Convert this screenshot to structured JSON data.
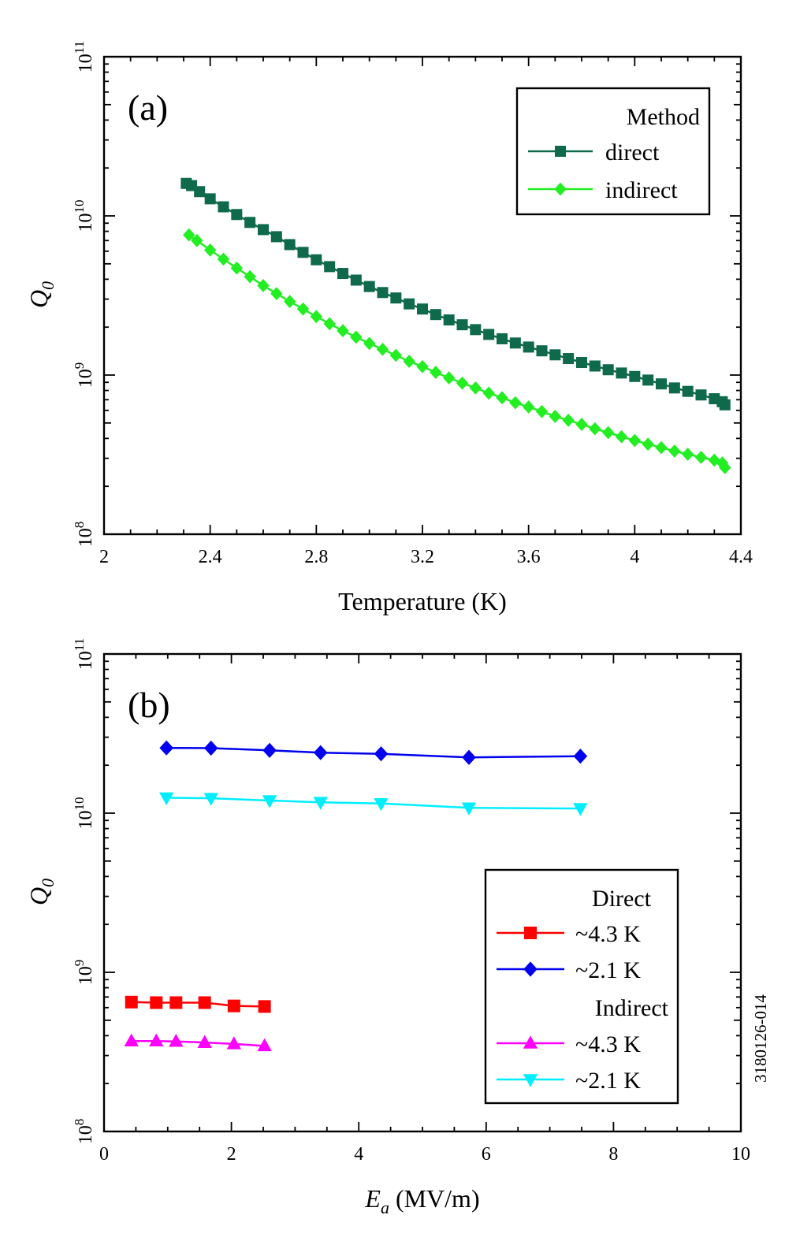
{
  "figure_id": "3180126-014",
  "colors": {
    "direct": "#0e6a4a",
    "indirect": "#22ee22",
    "direct_4_3K": "#ff0000",
    "direct_2_1K": "#0000ee",
    "indirect_4_3K": "#ff00ff",
    "indirect_2_1K": "#00eeff"
  },
  "chart_data": [
    {
      "type": "line",
      "panel_label": "(a)",
      "xlabel": "Temperature (K)",
      "ylabel": "Q",
      "ylabel_sub": "0",
      "xlim": [
        2,
        4.4
      ],
      "ylim": [
        100000000,
        100000000000
      ],
      "yscale": "log",
      "grid": false,
      "x_ticks": [
        "2",
        "2.4",
        "2.8",
        "3.2",
        "3.6",
        "4",
        "4.4"
      ],
      "y_ticks": [
        {
          "base": "10",
          "exp": "8"
        },
        {
          "base": "10",
          "exp": "9"
        },
        {
          "base": "10",
          "exp": "10"
        },
        {
          "base": "10",
          "exp": "11"
        }
      ],
      "legend_title": "Method",
      "legend_position": "top-right",
      "series": [
        {
          "name": "direct",
          "marker": "square",
          "color": "#0e6a4a",
          "x": [
            2.31,
            2.33,
            2.36,
            2.4,
            2.45,
            2.5,
            2.55,
            2.6,
            2.65,
            2.7,
            2.75,
            2.8,
            2.85,
            2.9,
            2.95,
            3.0,
            3.05,
            3.1,
            3.15,
            3.2,
            3.25,
            3.3,
            3.35,
            3.4,
            3.45,
            3.5,
            3.55,
            3.6,
            3.65,
            3.7,
            3.75,
            3.8,
            3.85,
            3.9,
            3.95,
            4.0,
            4.05,
            4.1,
            4.15,
            4.2,
            4.25,
            4.3,
            4.33,
            4.34
          ],
          "y": [
            16000000000,
            15500000000,
            14200000000,
            12800000000,
            11400000000,
            10200000000,
            9100000000,
            8200000000,
            7400000000,
            6600000000,
            5900000000,
            5300000000,
            4800000000,
            4350000000,
            3950000000,
            3600000000,
            3300000000,
            3050000000,
            2800000000,
            2600000000,
            2400000000,
            2220000000,
            2070000000,
            1930000000,
            1800000000,
            1690000000,
            1590000000,
            1500000000,
            1420000000,
            1340000000,
            1270000000,
            1200000000,
            1140000000,
            1080000000,
            1030000000,
            980000000,
            930000000,
            880000000,
            830000000,
            790000000,
            750000000,
            710000000,
            680000000,
            650000000
          ]
        },
        {
          "name": "indirect",
          "marker": "diamond",
          "color": "#22ee22",
          "x": [
            2.32,
            2.35,
            2.4,
            2.45,
            2.5,
            2.55,
            2.6,
            2.65,
            2.7,
            2.75,
            2.8,
            2.85,
            2.9,
            2.95,
            3.0,
            3.05,
            3.1,
            3.15,
            3.2,
            3.25,
            3.3,
            3.35,
            3.4,
            3.45,
            3.5,
            3.55,
            3.6,
            3.65,
            3.7,
            3.75,
            3.8,
            3.85,
            3.9,
            3.95,
            4.0,
            4.05,
            4.1,
            4.15,
            4.2,
            4.25,
            4.3,
            4.33,
            4.34
          ],
          "y": [
            7600000000,
            7000000000,
            6100000000,
            5350000000,
            4700000000,
            4150000000,
            3650000000,
            3250000000,
            2900000000,
            2600000000,
            2330000000,
            2100000000,
            1900000000,
            1730000000,
            1580000000,
            1450000000,
            1330000000,
            1220000000,
            1130000000,
            1040000000,
            960000000,
            890000000,
            830000000,
            770000000,
            720000000,
            670000000,
            630000000,
            590000000,
            550000000,
            520000000,
            490000000,
            460000000,
            435000000,
            410000000,
            388000000,
            368000000,
            350000000,
            333000000,
            318000000,
            304000000,
            292000000,
            280000000,
            262000000
          ]
        }
      ]
    },
    {
      "type": "line",
      "panel_label": "(b)",
      "xlabel": "E",
      "xlabel_sub": "a",
      "xlabel_unit": "(MV/m)",
      "ylabel": "Q",
      "ylabel_sub": "0",
      "xlim": [
        0,
        10
      ],
      "ylim": [
        100000000,
        100000000000
      ],
      "yscale": "log",
      "grid": false,
      "x_ticks": [
        "0",
        "2",
        "4",
        "6",
        "8",
        "10"
      ],
      "y_ticks": [
        {
          "base": "10",
          "exp": "8"
        },
        {
          "base": "10",
          "exp": "9"
        },
        {
          "base": "10",
          "exp": "10"
        },
        {
          "base": "10",
          "exp": "11"
        }
      ],
      "legend_position": "bottom-right",
      "legend_groups": [
        "Direct",
        "Indirect"
      ],
      "series": [
        {
          "name": "~4.3 K",
          "group": "Direct",
          "marker": "square",
          "color": "#ff0000",
          "x": [
            0.43,
            0.82,
            1.13,
            1.58,
            2.04,
            2.52
          ],
          "y": [
            650000000,
            645000000,
            645000000,
            645000000,
            615000000,
            610000000
          ]
        },
        {
          "name": "~2.1 K",
          "group": "Direct",
          "marker": "diamond",
          "color": "#0000ee",
          "x": [
            0.98,
            1.68,
            2.6,
            3.4,
            4.35,
            5.73,
            7.48
          ],
          "y": [
            25700000000,
            25600000000,
            24800000000,
            24000000000,
            23600000000,
            22400000000,
            22800000000
          ]
        },
        {
          "name": "~4.3 K",
          "group": "Indirect",
          "marker": "triangle-up",
          "color": "#ff00ff",
          "x": [
            0.43,
            0.82,
            1.13,
            1.58,
            2.04,
            2.52
          ],
          "y": [
            370000000,
            370000000,
            368000000,
            362000000,
            355000000,
            345000000
          ]
        },
        {
          "name": "~2.1 K",
          "group": "Indirect",
          "marker": "triangle-down",
          "color": "#00eeff",
          "x": [
            0.98,
            1.68,
            2.6,
            3.4,
            4.35,
            5.73,
            7.48
          ],
          "y": [
            12500000000,
            12400000000,
            12000000000,
            11700000000,
            11500000000,
            10800000000,
            10700000000
          ]
        }
      ]
    }
  ]
}
